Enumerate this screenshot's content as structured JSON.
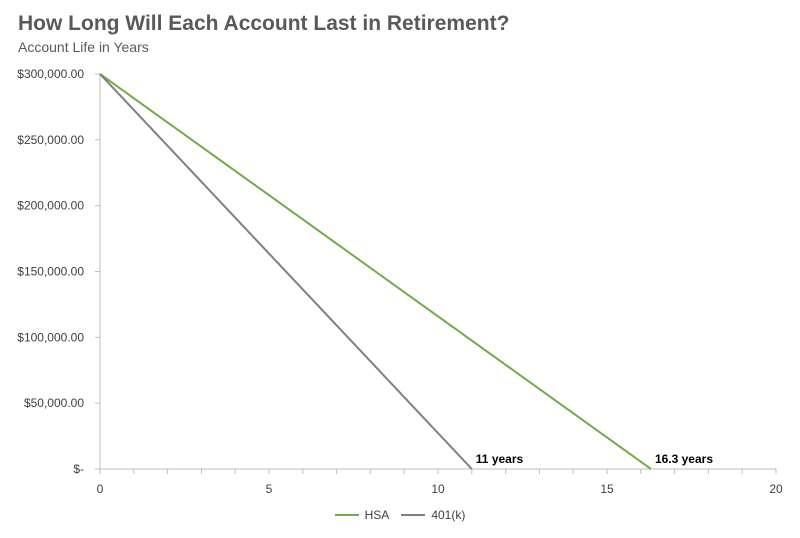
{
  "chart_data": {
    "type": "line",
    "title": "How Long Will Each Account Last in Retirement?",
    "subtitle": "Account Life in Years",
    "xlabel": "",
    "ylabel": "",
    "xlim": [
      0,
      20
    ],
    "ylim": [
      0,
      300000
    ],
    "x_ticks": [
      0,
      5,
      10,
      15,
      20
    ],
    "y_ticks": [
      0,
      50000,
      100000,
      150000,
      200000,
      250000,
      300000
    ],
    "y_tick_labels": [
      "$-",
      "$50,000.00",
      "$100,000.00",
      "$150,000.00",
      "$200,000.00",
      "$250,000.00",
      "$300,000.00"
    ],
    "grid": false,
    "legend_position": "bottom",
    "series": [
      {
        "name": "HSA",
        "color": "#70ad47",
        "x": [
          0,
          16.3
        ],
        "y": [
          300000,
          0
        ]
      },
      {
        "name": "401(k)",
        "color": "#7f7f7f",
        "x": [
          0,
          11
        ],
        "y": [
          300000,
          0
        ]
      }
    ],
    "annotations": [
      {
        "text": "11 years",
        "x": 11,
        "y": 0
      },
      {
        "text": "16.3 years",
        "x": 16.3,
        "y": 0
      }
    ]
  }
}
